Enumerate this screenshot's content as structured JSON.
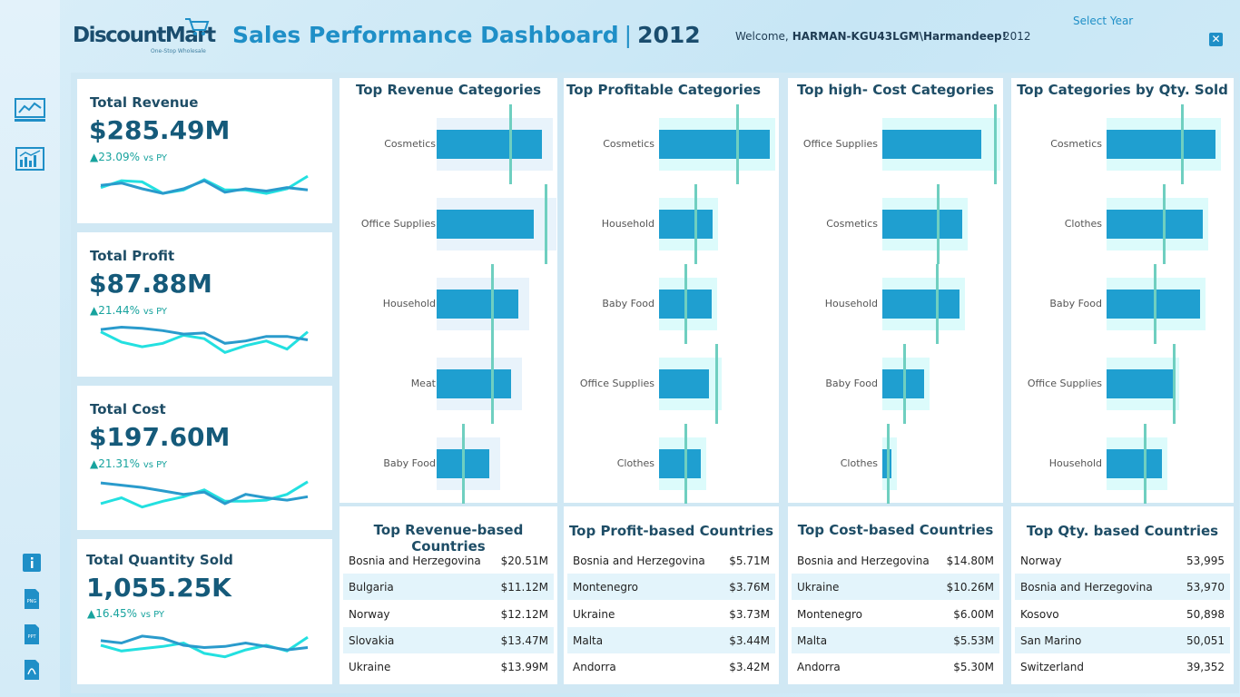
{
  "header": {
    "logo": "DiscountMart",
    "logo_tagline": "One-Stop Wholesale",
    "title": "Sales Performance Dashboard",
    "title_separator": "|",
    "title_year": "2012",
    "welcome_label": "Welcome,",
    "user": "HARMAN-KGU43LGM\\Harmandeep!",
    "year_value": "2012",
    "select_year_label": "Select Year",
    "close_label": "✕"
  },
  "colors": {
    "bar": "#1f9fd0",
    "ref_line": "#6fcfc0",
    "band": "#dcfbfb",
    "band_light": "#e8f3fb",
    "py_line": "#23e0e0",
    "cy_line": "#2a9bcc"
  },
  "kpis": [
    {
      "title": "Total Revenue",
      "value": "$285.49M",
      "delta": "▲23.09%",
      "suffix": "vs PY",
      "cy": [
        48,
        50,
        45,
        41,
        45,
        52,
        42,
        45,
        43,
        46,
        44
      ],
      "py": [
        46,
        52,
        51,
        41,
        44,
        53,
        44,
        44,
        41,
        45,
        56
      ]
    },
    {
      "title": "Total Profit",
      "value": "$87.88M",
      "delta": "▲21.44%",
      "suffix": "vs PY",
      "cy": [
        56,
        58,
        57,
        55,
        52,
        53,
        44,
        46,
        50,
        50,
        47
      ],
      "py": [
        54,
        45,
        41,
        44,
        51,
        48,
        36,
        42,
        46,
        39,
        54
      ]
    },
    {
      "title": "Total Cost",
      "value": "$197.60M",
      "delta": "▲21.31%",
      "suffix": "vs PY",
      "cy": [
        56,
        54,
        52,
        49,
        46,
        48,
        38,
        46,
        43,
        41,
        44
      ],
      "py": [
        38,
        43,
        35,
        40,
        44,
        50,
        40,
        40,
        41,
        46,
        57
      ]
    },
    {
      "title": "Total Quantity Sold",
      "value": "1,055.25K",
      "delta": "▲16.45%",
      "suffix": "vs PY",
      "cy": [
        49,
        47,
        53,
        51,
        45,
        43,
        44,
        47,
        44,
        41,
        43
      ],
      "py": [
        45,
        40,
        42,
        44,
        47,
        38,
        35,
        41,
        45,
        40,
        52
      ]
    }
  ],
  "chart_data": [
    {
      "type": "bar",
      "title": "Top Revenue Categories",
      "categories": [
        "Cosmetics",
        "Office Supplies",
        "Household",
        "Meat",
        "Baby Food"
      ],
      "values": [
        100,
        92.5,
        77.2,
        70.5,
        50.2
      ],
      "reference": [
        70.2,
        103.5,
        52.7,
        52.7,
        25.4
      ],
      "band": "light"
    },
    {
      "type": "bar",
      "title": "Top Profitable Categories",
      "categories": [
        "Cosmetics",
        "Household",
        "Baby Food",
        "Office Supplies",
        "Clothes"
      ],
      "values": [
        100,
        48.4,
        47.5,
        45.1,
        37.7
      ],
      "reference": [
        70.5,
        32.8,
        23.8,
        51.6,
        23.8
      ],
      "band": "cyan"
    },
    {
      "type": "bar",
      "title": "Top high- Cost Categories",
      "categories": [
        "Office Supplies",
        "Cosmetics",
        "Household",
        "Baby Food",
        "Clothes"
      ],
      "values": [
        100,
        80.7,
        77.9,
        42.2,
        9.2
      ],
      "reference": [
        113.8,
        55.9,
        55.0,
        22.0,
        5.5
      ],
      "band": "cyan"
    },
    {
      "type": "bar",
      "title": "Top Categories by Qty. Sold",
      "categories": [
        "Cosmetics",
        "Clothes",
        "Baby Food",
        "Office Supplies",
        "Household"
      ],
      "values": [
        100,
        88.3,
        85.8,
        61.7,
        50.8
      ],
      "reference": [
        69.2,
        52.5,
        44.2,
        61.7,
        35.0
      ],
      "band": "cyan"
    }
  ],
  "lists": [
    {
      "title": "Top Revenue-based Countries",
      "rows": [
        [
          "Bosnia and Herzegovina",
          "$20.51M"
        ],
        [
          "Bulgaria",
          "$11.12M"
        ],
        [
          "Norway",
          "$12.12M"
        ],
        [
          "Slovakia",
          "$13.47M"
        ],
        [
          "Ukraine",
          "$13.99M"
        ]
      ]
    },
    {
      "title": "Top Profit-based Countries",
      "rows": [
        [
          "Bosnia and Herzegovina",
          "$5.71M"
        ],
        [
          "Montenegro",
          "$3.76M"
        ],
        [
          "Ukraine",
          "$3.73M"
        ],
        [
          "Malta",
          "$3.44M"
        ],
        [
          "Andorra",
          "$3.42M"
        ]
      ]
    },
    {
      "title": "Top Cost-based Countries",
      "rows": [
        [
          "Bosnia and Herzegovina",
          "$14.80M"
        ],
        [
          "Ukraine",
          "$10.26M"
        ],
        [
          "Montenegro",
          "$6.00M"
        ],
        [
          "Malta",
          "$5.53M"
        ],
        [
          "Andorra",
          "$5.30M"
        ]
      ]
    },
    {
      "title": "Top Qty. based Countries",
      "rows": [
        [
          "Norway",
          "53,995"
        ],
        [
          "Bosnia and Herzegovina",
          "53,970"
        ],
        [
          "Kosovo",
          "50,898"
        ],
        [
          "San Marino",
          "50,051"
        ],
        [
          "Switzerland",
          "39,352"
        ]
      ]
    }
  ],
  "sidebar": {
    "nav_icons": [
      "line-chart-icon",
      "dashboard-chart-icon"
    ],
    "util_icons": [
      "info-icon",
      "png-export-icon",
      "ppt-export-icon",
      "pdf-export-icon"
    ]
  }
}
